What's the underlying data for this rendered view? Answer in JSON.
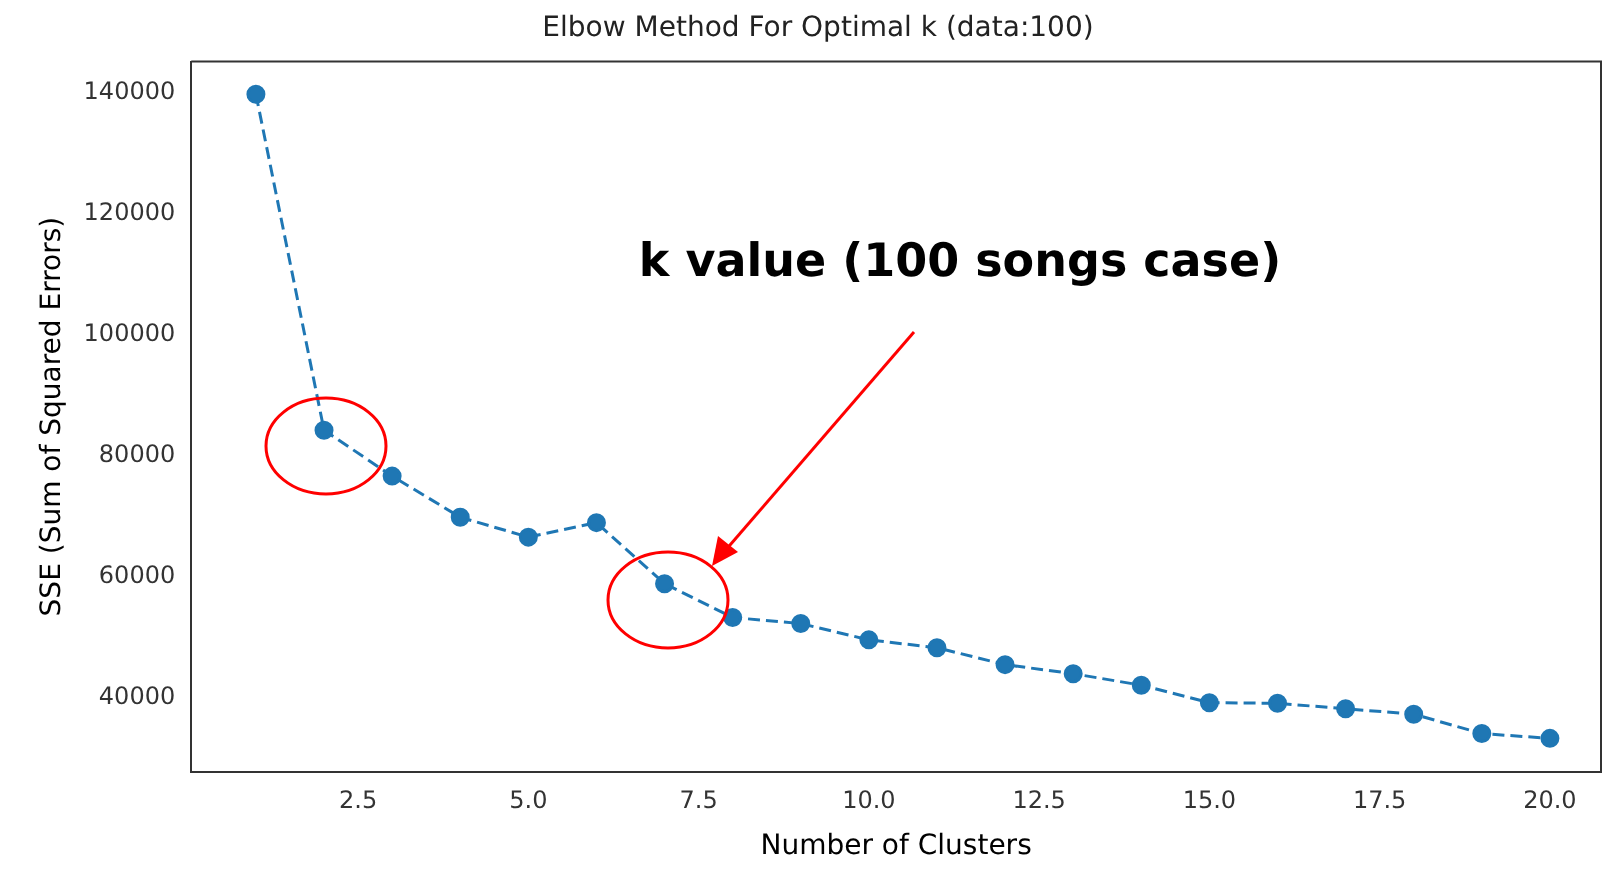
{
  "chart_data": {
    "type": "line",
    "title": "Elbow Method For Optimal k (data:100)",
    "xlabel": "Number of Clusters",
    "ylabel": "SSE (Sum of Squared Errors)",
    "annotations": [
      "k value (100 songs case)"
    ],
    "x": [
      1,
      2,
      3,
      4,
      5,
      6,
      7,
      8,
      9,
      10,
      11,
      12,
      13,
      14,
      15,
      16,
      17,
      18,
      19,
      20
    ],
    "series": [
      {
        "color": "#1f77b4",
        "values": [
          139800,
          84200,
          76600,
          69800,
          66500,
          68900,
          58800,
          53200,
          52200,
          49500,
          48200,
          45400,
          43900,
          42000,
          39100,
          39000,
          38100,
          37200,
          34000,
          33200
        ]
      }
    ],
    "xlim": [
      0.05,
      20.75
    ],
    "xticks": [
      {
        "value": 2.5,
        "label": "2.5"
      },
      {
        "value": 5,
        "label": "5.0"
      },
      {
        "value": 7.5,
        "label": "7.5"
      },
      {
        "value": 10,
        "label": "10.0"
      },
      {
        "value": 12.5,
        "label": "12.5"
      },
      {
        "value": 15,
        "label": "15.0"
      },
      {
        "value": 17.5,
        "label": "17.5"
      },
      {
        "value": 20,
        "label": "20.0"
      }
    ],
    "ylim": [
      27700,
      145200
    ],
    "yticks": [
      40000,
      60000,
      80000,
      100000,
      120000,
      140000
    ],
    "grid": false,
    "legend": false,
    "marker": "circle",
    "line_style": "dashed"
  }
}
